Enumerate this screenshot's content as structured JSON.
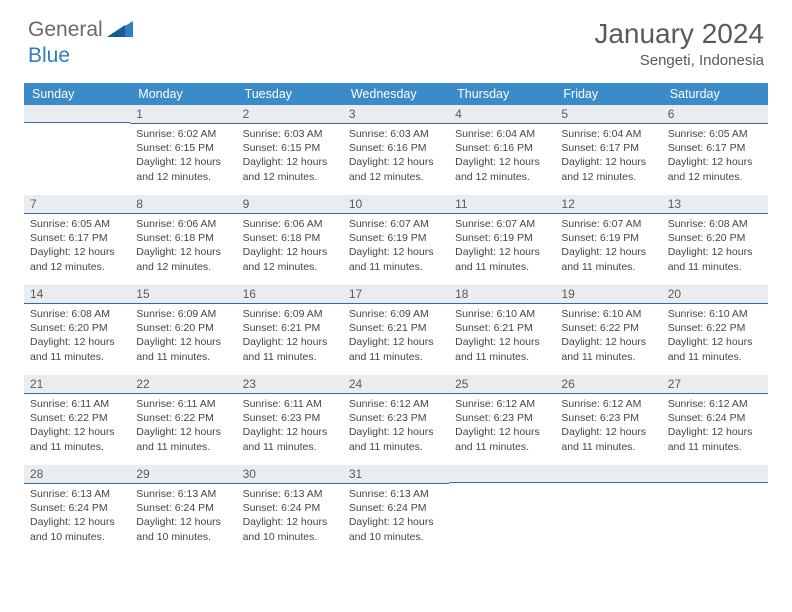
{
  "brand": {
    "general": "General",
    "blue": "Blue"
  },
  "header": {
    "month": "January 2024",
    "location": "Sengeti, Indonesia"
  },
  "colors": {
    "header_bg": "#3b8bc9",
    "daynum_bg": "#e9edf0",
    "divider": "#2f6da8",
    "text": "#464646",
    "title": "#5a5a5a",
    "brand_grey": "#6a6a6a",
    "brand_blue": "#2f7fc1"
  },
  "weekdays": [
    "Sunday",
    "Monday",
    "Tuesday",
    "Wednesday",
    "Thursday",
    "Friday",
    "Saturday"
  ],
  "weeks": [
    [
      null,
      {
        "n": "1",
        "sr": "6:02 AM",
        "ss": "6:15 PM",
        "dl": "12 hours and 12 minutes."
      },
      {
        "n": "2",
        "sr": "6:03 AM",
        "ss": "6:15 PM",
        "dl": "12 hours and 12 minutes."
      },
      {
        "n": "3",
        "sr": "6:03 AM",
        "ss": "6:16 PM",
        "dl": "12 hours and 12 minutes."
      },
      {
        "n": "4",
        "sr": "6:04 AM",
        "ss": "6:16 PM",
        "dl": "12 hours and 12 minutes."
      },
      {
        "n": "5",
        "sr": "6:04 AM",
        "ss": "6:17 PM",
        "dl": "12 hours and 12 minutes."
      },
      {
        "n": "6",
        "sr": "6:05 AM",
        "ss": "6:17 PM",
        "dl": "12 hours and 12 minutes."
      }
    ],
    [
      {
        "n": "7",
        "sr": "6:05 AM",
        "ss": "6:17 PM",
        "dl": "12 hours and 12 minutes."
      },
      {
        "n": "8",
        "sr": "6:06 AM",
        "ss": "6:18 PM",
        "dl": "12 hours and 12 minutes."
      },
      {
        "n": "9",
        "sr": "6:06 AM",
        "ss": "6:18 PM",
        "dl": "12 hours and 12 minutes."
      },
      {
        "n": "10",
        "sr": "6:07 AM",
        "ss": "6:19 PM",
        "dl": "12 hours and 11 minutes."
      },
      {
        "n": "11",
        "sr": "6:07 AM",
        "ss": "6:19 PM",
        "dl": "12 hours and 11 minutes."
      },
      {
        "n": "12",
        "sr": "6:07 AM",
        "ss": "6:19 PM",
        "dl": "12 hours and 11 minutes."
      },
      {
        "n": "13",
        "sr": "6:08 AM",
        "ss": "6:20 PM",
        "dl": "12 hours and 11 minutes."
      }
    ],
    [
      {
        "n": "14",
        "sr": "6:08 AM",
        "ss": "6:20 PM",
        "dl": "12 hours and 11 minutes."
      },
      {
        "n": "15",
        "sr": "6:09 AM",
        "ss": "6:20 PM",
        "dl": "12 hours and 11 minutes."
      },
      {
        "n": "16",
        "sr": "6:09 AM",
        "ss": "6:21 PM",
        "dl": "12 hours and 11 minutes."
      },
      {
        "n": "17",
        "sr": "6:09 AM",
        "ss": "6:21 PM",
        "dl": "12 hours and 11 minutes."
      },
      {
        "n": "18",
        "sr": "6:10 AM",
        "ss": "6:21 PM",
        "dl": "12 hours and 11 minutes."
      },
      {
        "n": "19",
        "sr": "6:10 AM",
        "ss": "6:22 PM",
        "dl": "12 hours and 11 minutes."
      },
      {
        "n": "20",
        "sr": "6:10 AM",
        "ss": "6:22 PM",
        "dl": "12 hours and 11 minutes."
      }
    ],
    [
      {
        "n": "21",
        "sr": "6:11 AM",
        "ss": "6:22 PM",
        "dl": "12 hours and 11 minutes."
      },
      {
        "n": "22",
        "sr": "6:11 AM",
        "ss": "6:22 PM",
        "dl": "12 hours and 11 minutes."
      },
      {
        "n": "23",
        "sr": "6:11 AM",
        "ss": "6:23 PM",
        "dl": "12 hours and 11 minutes."
      },
      {
        "n": "24",
        "sr": "6:12 AM",
        "ss": "6:23 PM",
        "dl": "12 hours and 11 minutes."
      },
      {
        "n": "25",
        "sr": "6:12 AM",
        "ss": "6:23 PM",
        "dl": "12 hours and 11 minutes."
      },
      {
        "n": "26",
        "sr": "6:12 AM",
        "ss": "6:23 PM",
        "dl": "12 hours and 11 minutes."
      },
      {
        "n": "27",
        "sr": "6:12 AM",
        "ss": "6:24 PM",
        "dl": "12 hours and 11 minutes."
      }
    ],
    [
      {
        "n": "28",
        "sr": "6:13 AM",
        "ss": "6:24 PM",
        "dl": "12 hours and 10 minutes."
      },
      {
        "n": "29",
        "sr": "6:13 AM",
        "ss": "6:24 PM",
        "dl": "12 hours and 10 minutes."
      },
      {
        "n": "30",
        "sr": "6:13 AM",
        "ss": "6:24 PM",
        "dl": "12 hours and 10 minutes."
      },
      {
        "n": "31",
        "sr": "6:13 AM",
        "ss": "6:24 PM",
        "dl": "12 hours and 10 minutes."
      },
      null,
      null,
      null
    ]
  ],
  "labels": {
    "sunrise": "Sunrise:",
    "sunset": "Sunset:",
    "daylight": "Daylight:"
  }
}
